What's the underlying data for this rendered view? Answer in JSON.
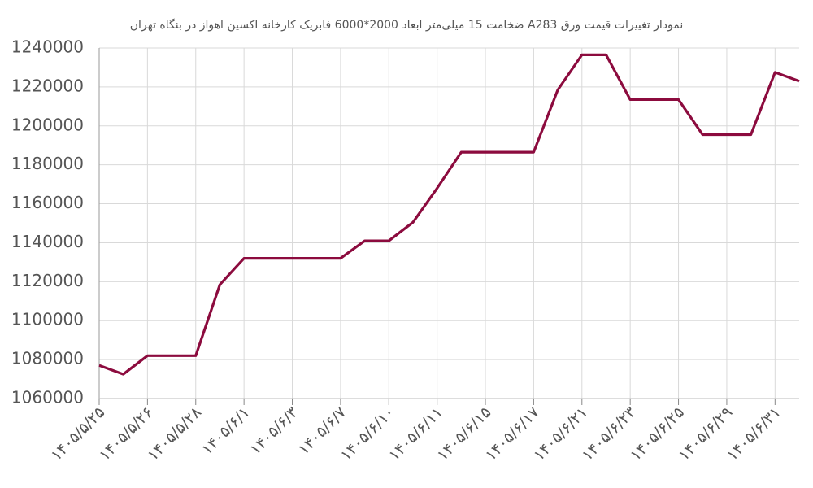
{
  "chart_data": {
    "type": "line",
    "title": "نمودار تغییرات قیمت ورق A283  ضخامت 15 میلی‌متر ابعاد 2000*6000 فابریک کارخانه اکسین اهواز در بنگاه تهران",
    "categories": [
      "۱۴۰۵/۵/۲۵",
      null,
      "۱۴۰۵/۵/۲۶",
      null,
      "۱۴۰۵/۵/۲۸",
      null,
      "۱۴۰۵/۶/۱",
      null,
      "۱۴۰۵/۶/۳",
      null,
      "۱۴۰۵/۶/۷",
      null,
      "۱۴۰۵/۶/۱۰",
      null,
      "۱۴۰۵/۶/۱۱",
      null,
      "۱۴۰۵/۶/۱۵",
      null,
      "۱۴۰۵/۶/۱۷",
      null,
      "۱۴۰۵/۶/۲۱",
      null,
      "۱۴۰۵/۶/۲۳",
      null,
      "۱۴۰۵/۶/۲۵",
      null,
      "۱۴۰۵/۶/۲۹",
      null,
      "۱۴۰۵/۶/۳۱",
      null
    ],
    "series": [
      {
        "color": "#8c0b3e",
        "values": [
          1077000,
          1072500,
          1082000,
          1082000,
          1082000,
          1118500,
          1132000,
          1132000,
          1132000,
          1132000,
          1132000,
          1141000,
          1141000,
          1150500,
          1168000,
          1186500,
          1186500,
          1186500,
          1186500,
          1218500,
          1236500,
          1236500,
          1213500,
          1213500,
          1213500,
          1195500,
          1195500,
          1195500,
          1227500,
          1223000
        ]
      }
    ],
    "ylim": [
      1060000,
      1240000
    ],
    "yticks": [
      1060000,
      1080000,
      1100000,
      1120000,
      1140000,
      1160000,
      1180000,
      1200000,
      1220000,
      1240000
    ],
    "grid": true
  }
}
